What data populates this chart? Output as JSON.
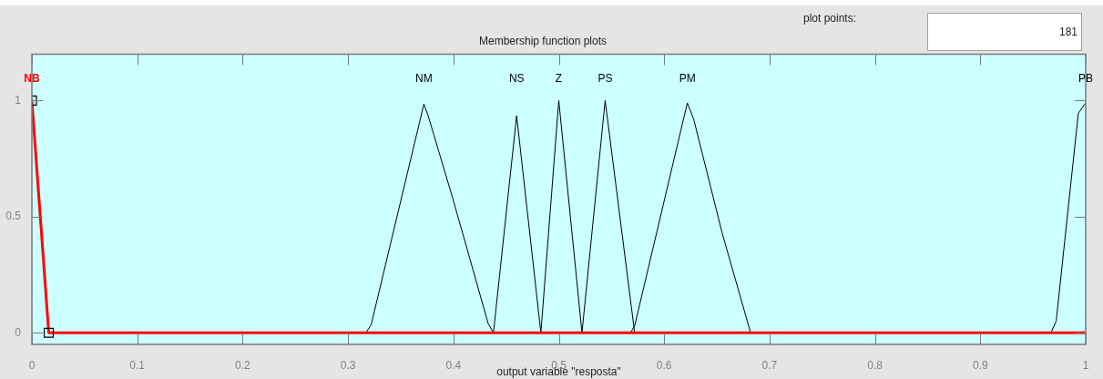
{
  "chart_data": {
    "type": "line",
    "title": "Membership function plots",
    "xlabel": "output variable \"resposta\"",
    "annotations": [
      "plot points:",
      "181"
    ],
    "xlim": [
      0,
      1
    ],
    "ylim": [
      -0.05,
      1.2
    ],
    "xticks": [
      0,
      0.1,
      0.2,
      0.3,
      0.4,
      0.5,
      0.6,
      0.7,
      0.8,
      0.9,
      1
    ],
    "yticks": [
      0,
      0.5,
      1
    ],
    "series": [
      {
        "name": "NB",
        "color": "#ff0000",
        "x": [
          0,
          0.016,
          1
        ],
        "values": [
          1,
          0,
          0
        ]
      },
      {
        "name": "NM",
        "color": "#000000",
        "x": [
          0.317,
          0.322,
          0.372,
          0.376,
          0.399,
          0.433,
          0.438
        ],
        "values": [
          0,
          0.035,
          0.985,
          0.935,
          0.585,
          0.04,
          0
        ]
      },
      {
        "name": "NS",
        "color": "#000000",
        "x": [
          0.438,
          0.46,
          0.483
        ],
        "values": [
          0,
          0.935,
          0
        ]
      },
      {
        "name": "Z",
        "color": "#000000",
        "x": [
          0.483,
          0.5,
          0.522
        ],
        "values": [
          0,
          1,
          0
        ]
      },
      {
        "name": "PS",
        "color": "#000000",
        "x": [
          0.522,
          0.544,
          0.572
        ],
        "values": [
          0,
          1,
          0
        ]
      },
      {
        "name": "PM",
        "color": "#000000",
        "x": [
          0.568,
          0.572,
          0.622,
          0.628,
          0.655,
          0.677,
          0.682
        ],
        "values": [
          0,
          0.03,
          0.99,
          0.92,
          0.43,
          0.08,
          0
        ]
      },
      {
        "name": "PB",
        "color": "#000000",
        "x": [
          0.967,
          0.972,
          0.993,
          1
        ],
        "values": [
          0,
          0.05,
          0.945,
          0.99
        ]
      },
      {
        "type": "scatter",
        "color": "#000000",
        "marker": "square",
        "x": [
          0,
          0.016
        ],
        "values": [
          1,
          0
        ]
      }
    ]
  }
}
